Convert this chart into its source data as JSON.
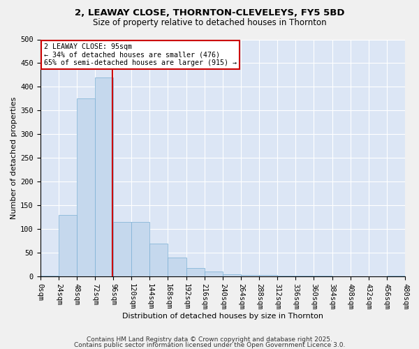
{
  "title": "2, LEAWAY CLOSE, THORNTON-CLEVELEYS, FY5 5BD",
  "subtitle": "Size of property relative to detached houses in Thornton",
  "xlabel": "Distribution of detached houses by size in Thornton",
  "ylabel": "Number of detached properties",
  "bar_color": "#c5d8ed",
  "bar_edge_color": "#7aafd4",
  "background_color": "#dce6f5",
  "grid_color": "#ffffff",
  "bin_edges": [
    0,
    24,
    48,
    72,
    96,
    120,
    144,
    168,
    192,
    216,
    240,
    264,
    288,
    312,
    336,
    360,
    384,
    408,
    432,
    456,
    480
  ],
  "bar_heights": [
    2,
    130,
    375,
    420,
    115,
    115,
    70,
    40,
    18,
    10,
    5,
    3,
    3,
    1,
    1,
    1,
    0,
    0,
    0,
    1
  ],
  "red_line_x": 95,
  "annotation_line1": "2 LEAWAY CLOSE: 95sqm",
  "annotation_line2": "← 34% of detached houses are smaller (476)",
  "annotation_line3": "65% of semi-detached houses are larger (915) →",
  "annotation_box_color": "#ffffff",
  "annotation_box_edge": "#cc0000",
  "red_line_color": "#cc0000",
  "ylim": [
    0,
    500
  ],
  "xlim": [
    0,
    480
  ],
  "yticks": [
    0,
    50,
    100,
    150,
    200,
    250,
    300,
    350,
    400,
    450,
    500
  ],
  "tick_fontsize": 7.5,
  "footer_line1": "Contains HM Land Registry data © Crown copyright and database right 2025.",
  "footer_line2": "Contains public sector information licensed under the Open Government Licence 3.0.",
  "footer_fontsize": 6.5
}
